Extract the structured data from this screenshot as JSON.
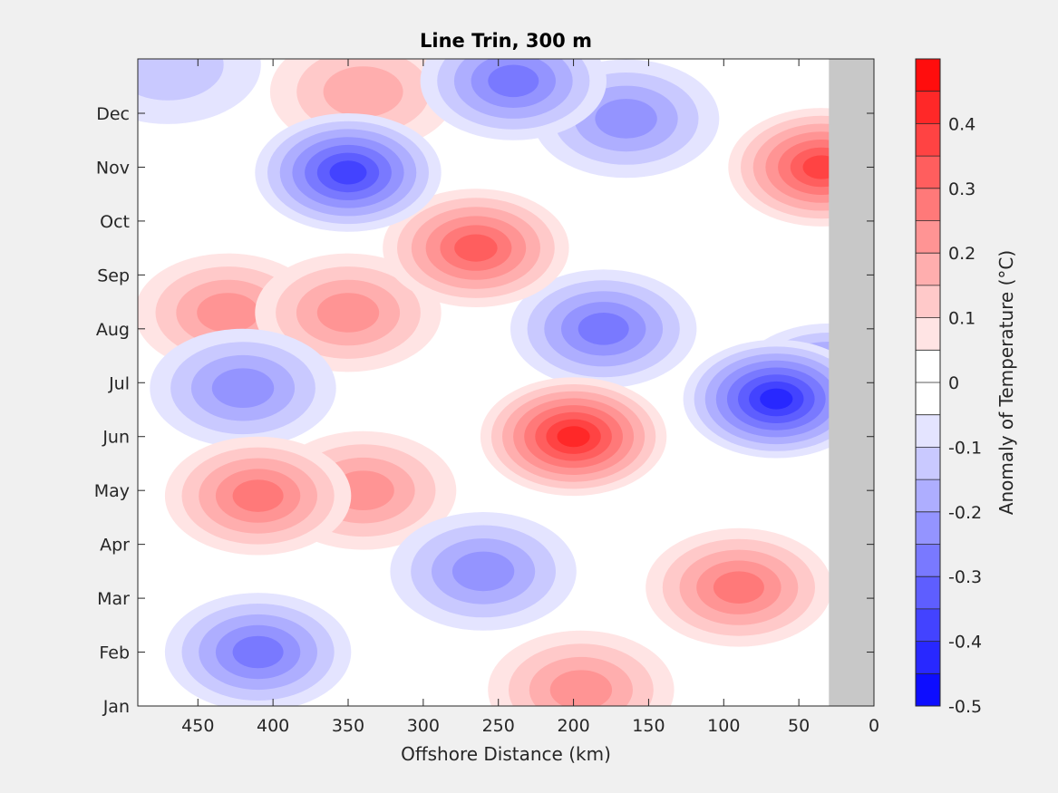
{
  "chart_data": {
    "type": "heatmap",
    "subtype": "filled-contour",
    "title": "Line Trin, 300 m",
    "xlabel": "Offshore Distance (km)",
    "ylabel": "",
    "xlim": [
      490,
      0
    ],
    "x_ticks": [
      450,
      400,
      350,
      300,
      250,
      200,
      150,
      100,
      50,
      0
    ],
    "y_ticks": [
      "Jan",
      "Feb",
      "Mar",
      "Apr",
      "May",
      "Jun",
      "Jul",
      "Aug",
      "Sep",
      "Oct",
      "Nov",
      "Dec"
    ],
    "no_data_region_km": [
      30,
      0
    ],
    "colorbar": {
      "label": "Anomaly of Temperature (°C)",
      "range": [
        -0.5,
        0.5
      ],
      "step": 0.05,
      "tick_values": [
        0.4,
        0.3,
        0.2,
        0.1,
        0,
        -0.1,
        -0.2,
        -0.3,
        -0.4,
        -0.5
      ],
      "tick_labels": [
        "0.4",
        "0.3",
        "0.2",
        "0.1",
        "0",
        "-0.1",
        "-0.2",
        "-0.3",
        "-0.4",
        "-0.5"
      ],
      "colormap": "blue-white-red"
    },
    "features": [
      {
        "x": 410,
        "month": 3.9,
        "value": 0.28
      },
      {
        "x": 340,
        "month": 4.0,
        "value": 0.22
      },
      {
        "x": 200,
        "month": 5.0,
        "value": 0.42
      },
      {
        "x": 265,
        "month": 8.5,
        "value": 0.35
      },
      {
        "x": 430,
        "month": 7.3,
        "value": 0.2
      },
      {
        "x": 350,
        "month": 7.3,
        "value": 0.2
      },
      {
        "x": 340,
        "month": 11.4,
        "value": 0.18
      },
      {
        "x": 35,
        "month": 10.0,
        "value": 0.38
      },
      {
        "x": 90,
        "month": 2.2,
        "value": 0.3
      },
      {
        "x": 195,
        "month": 0.3,
        "value": 0.2
      },
      {
        "x": 350,
        "month": 9.9,
        "value": -0.38
      },
      {
        "x": 180,
        "month": 7.0,
        "value": -0.3
      },
      {
        "x": 65,
        "month": 5.7,
        "value": -0.4
      },
      {
        "x": 30,
        "month": 6.0,
        "value": -0.35
      },
      {
        "x": 165,
        "month": 10.9,
        "value": -0.22
      },
      {
        "x": 240,
        "month": 11.6,
        "value": -0.28
      },
      {
        "x": 410,
        "month": 1.0,
        "value": -0.25
      },
      {
        "x": 260,
        "month": 2.5,
        "value": -0.22
      },
      {
        "x": 420,
        "month": 5.9,
        "value": -0.22
      },
      {
        "x": 470,
        "month": 11.9,
        "value": -0.15
      }
    ]
  }
}
